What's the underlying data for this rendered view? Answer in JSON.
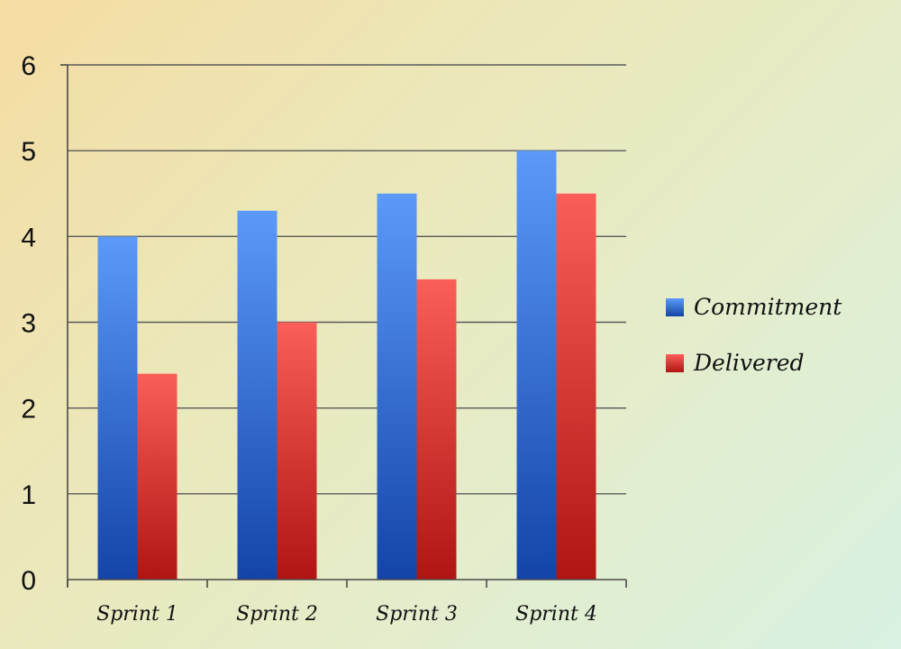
{
  "chart_data": {
    "type": "bar",
    "categories": [
      "Sprint 1",
      "Sprint 2",
      "Sprint 3",
      "Sprint 4"
    ],
    "series": [
      {
        "name": "Commitment",
        "values": [
          4.0,
          4.3,
          4.5,
          5.0
        ],
        "color": "#2f6ad8"
      },
      {
        "name": "Delivered",
        "values": [
          2.4,
          3.0,
          3.5,
          4.5
        ],
        "color": "#d8302c"
      }
    ],
    "yticks": [
      "0",
      "1",
      "2",
      "3",
      "4",
      "5",
      "6"
    ],
    "ylim": [
      0,
      6
    ],
    "grid": true,
    "legend_position": "right"
  }
}
